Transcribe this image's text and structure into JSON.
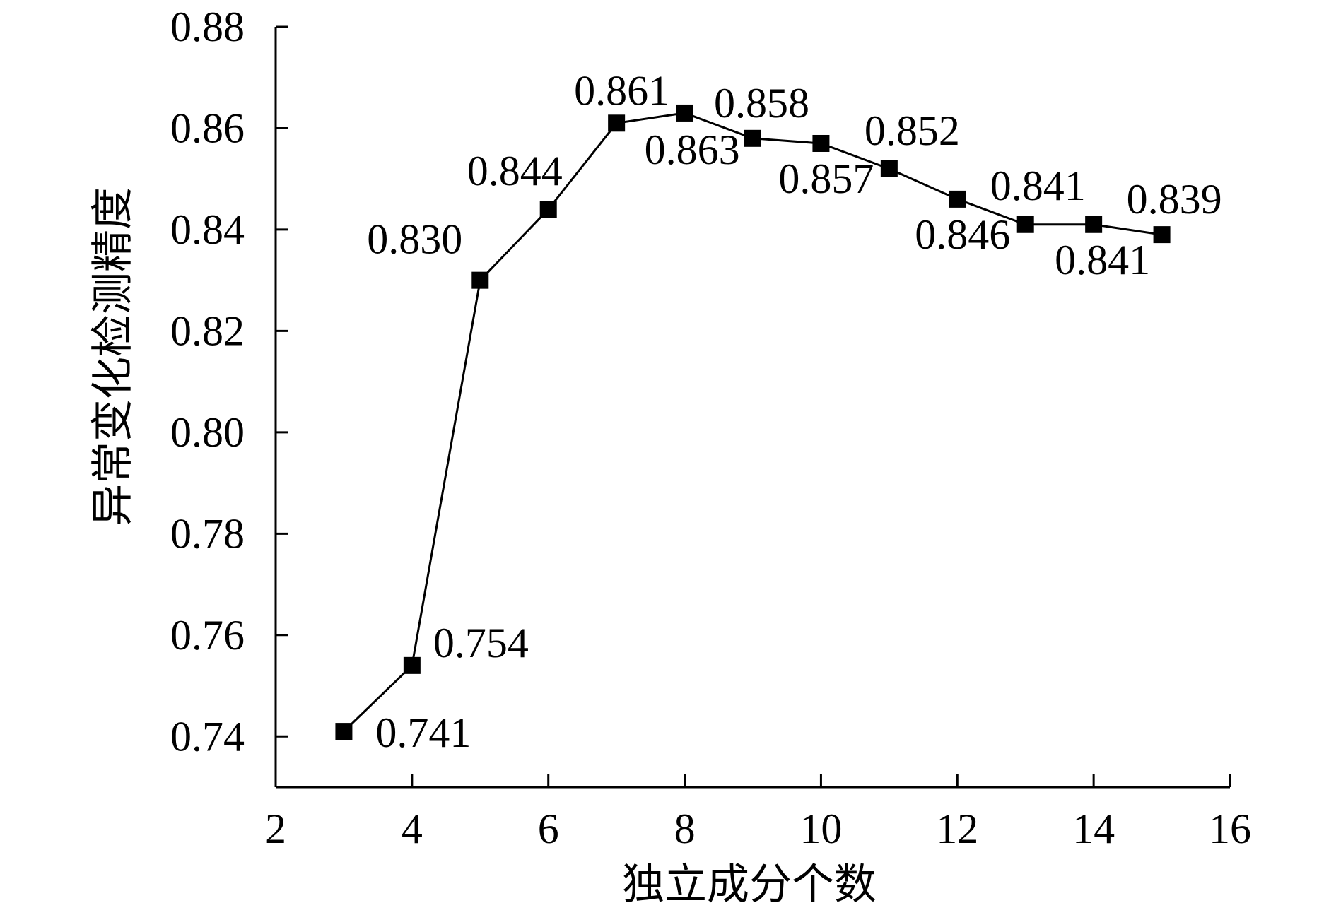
{
  "chart_data": {
    "type": "line",
    "xlabel": "独立成分个数",
    "ylabel": "异常变化检测精度",
    "xlim": [
      2,
      16
    ],
    "ylim": [
      0.73,
      0.88
    ],
    "x_ticks": [
      "2",
      "4",
      "6",
      "8",
      "10",
      "12",
      "14",
      "16"
    ],
    "y_ticks": [
      "0.74",
      "0.76",
      "0.78",
      "0.80",
      "0.82",
      "0.84",
      "0.86",
      "0.88"
    ],
    "grid": false,
    "legend": "none",
    "marker": "square",
    "line_color": "#000000",
    "series": [
      {
        "x": [
          3,
          4,
          5,
          6,
          7,
          8,
          9,
          10,
          11,
          12,
          13,
          14,
          15
        ],
        "y": [
          0.741,
          0.754,
          0.83,
          0.844,
          0.861,
          0.863,
          0.858,
          0.857,
          0.852,
          0.846,
          0.841,
          0.841,
          0.839
        ],
        "labels": [
          "0.741",
          "0.754",
          "0.830",
          "0.844",
          "0.861",
          "0.863",
          "0.858",
          "0.857",
          "0.852",
          "0.846",
          "0.841",
          "0.841",
          "0.839"
        ]
      }
    ]
  }
}
